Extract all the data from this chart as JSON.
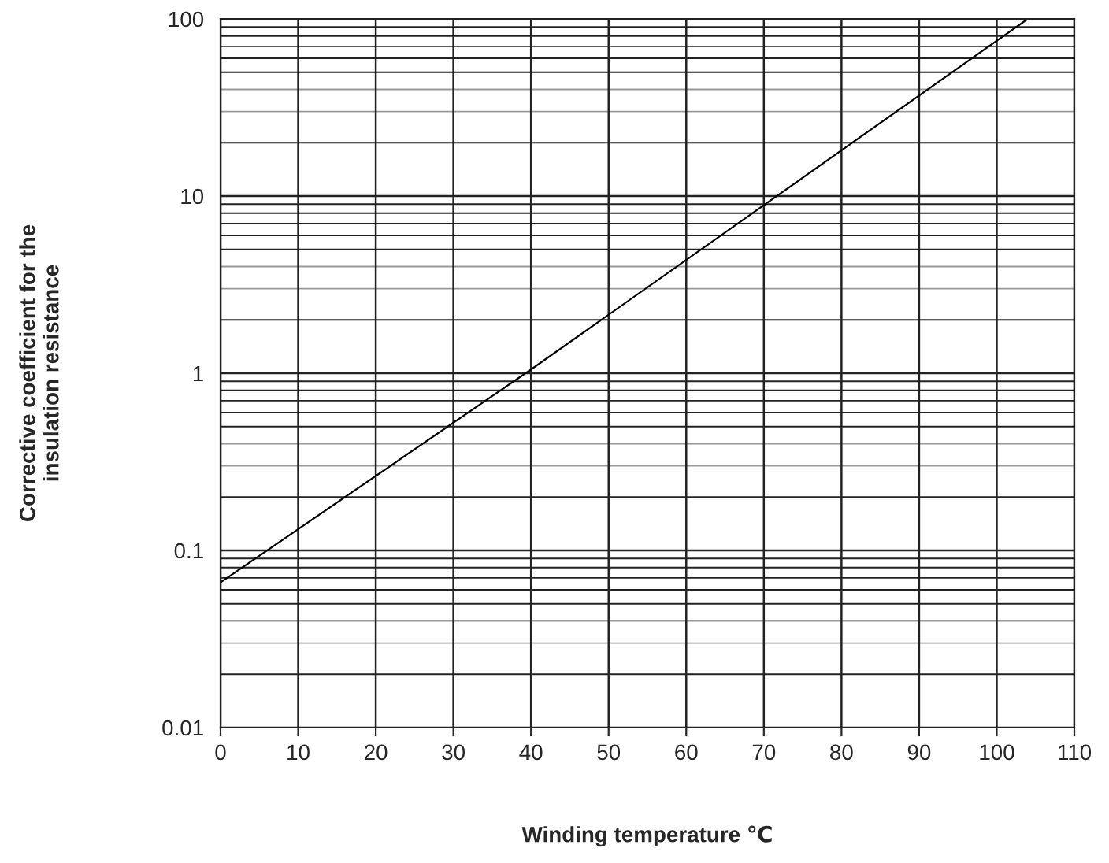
{
  "chart_data": {
    "type": "line",
    "xlabel": "Winding temperature ℃",
    "ylabel": "Corrective coefficient for the\ninsulation resistance",
    "x": [
      0,
      40,
      104
    ],
    "series": [
      {
        "color": "#000000",
        "values": [
          0.066,
          1.05,
          100
        ]
      }
    ],
    "xlim": [
      0,
      110
    ],
    "xticks": [
      0,
      10,
      20,
      30,
      40,
      50,
      60,
      70,
      80,
      90,
      100,
      110
    ],
    "ylim": [
      0.01,
      100
    ],
    "yticks": [
      0.01,
      0.1,
      1,
      10,
      100
    ],
    "log": "y",
    "grid": true,
    "marker": "none",
    "line_style": "solid"
  }
}
